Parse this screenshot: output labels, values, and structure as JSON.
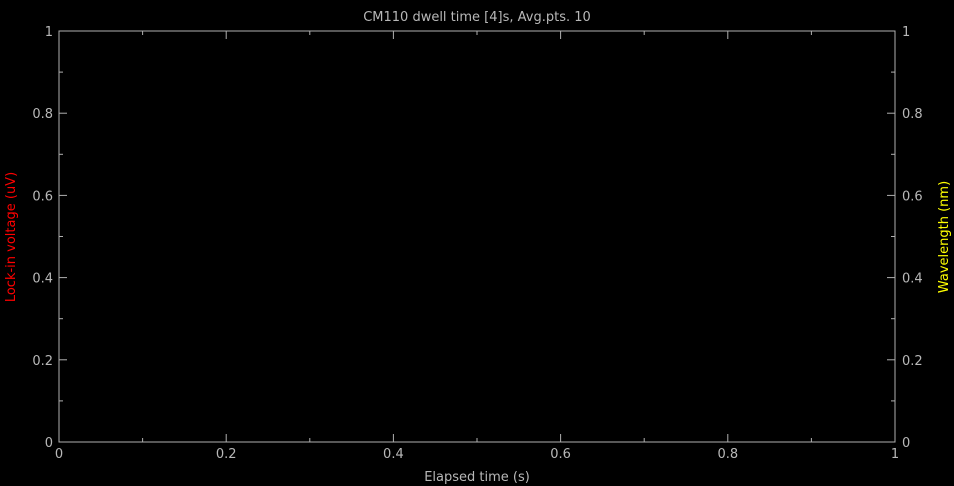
{
  "chart_data": {
    "type": "line",
    "title": "CM110 dwell time [4]s, Avg.pts. 10",
    "xlabel": "Elapsed time (s)",
    "ylabel": "Lock-in voltage (uV)",
    "y2label": "Wavelength (nm)",
    "xlim": [
      0,
      1
    ],
    "ylim": [
      0,
      1
    ],
    "y2lim": [
      0,
      1
    ],
    "x_ticks": [
      "0",
      "0.2",
      "0.4",
      "0.6",
      "0.8",
      "1"
    ],
    "y_ticks": [
      "0",
      "0.2",
      "0.4",
      "0.6",
      "0.8",
      "1"
    ],
    "y2_ticks": [
      "0",
      "0.2",
      "0.4",
      "0.6",
      "0.8",
      "1"
    ],
    "grid": false,
    "series": [],
    "colors": {
      "background": "#000000",
      "axes": "#b0b0b0",
      "text": "#b8b8b8",
      "ylabel": "#ff0000",
      "y2label": "#ffff00"
    }
  }
}
